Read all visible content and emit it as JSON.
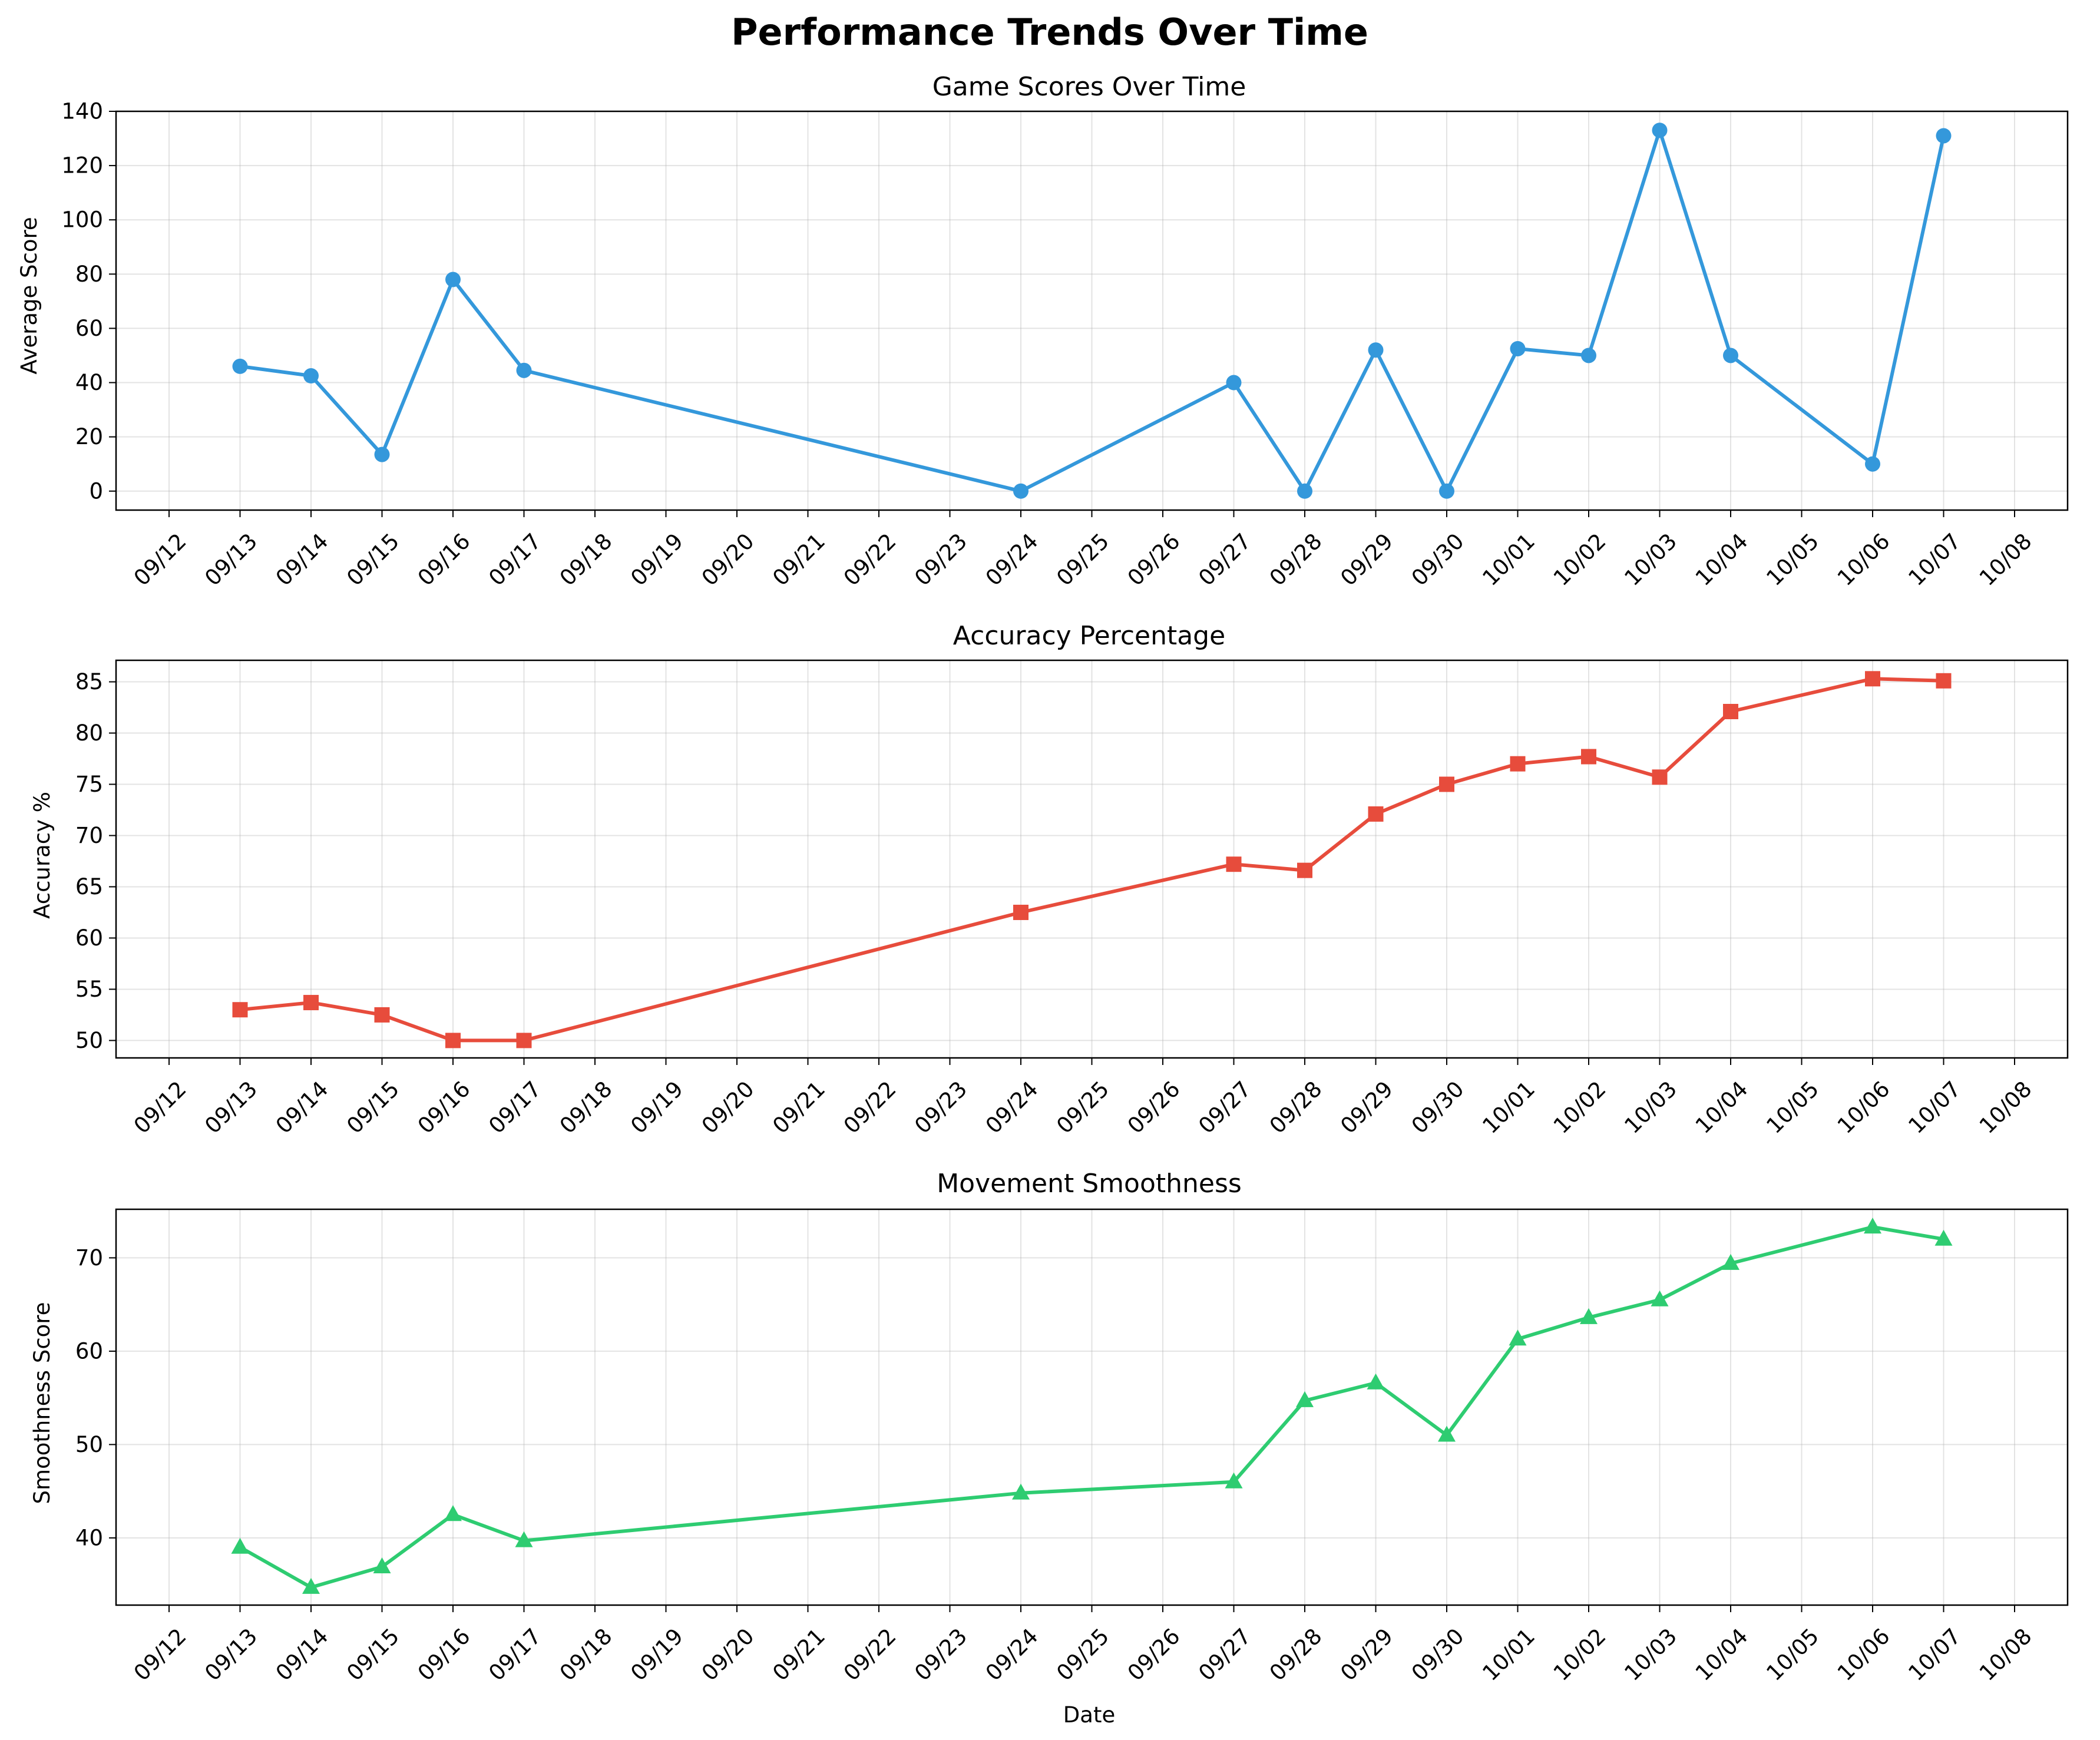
{
  "figure": {
    "title": "Performance Trends Over Time"
  },
  "x_ticks": [
    "09/12",
    "09/13",
    "09/14",
    "09/15",
    "09/16",
    "09/17",
    "09/18",
    "09/19",
    "09/20",
    "09/21",
    "09/22",
    "09/23",
    "09/24",
    "09/25",
    "09/26",
    "09/27",
    "09/28",
    "09/29",
    "09/30",
    "10/01",
    "10/02",
    "10/03",
    "10/04",
    "10/05",
    "10/06",
    "10/07",
    "10/08"
  ],
  "chart_data": [
    {
      "type": "line",
      "title": "Game Scores Over Time",
      "xlabel": "",
      "ylabel": "Average Score",
      "color": "#3498db",
      "marker": "circle",
      "grid": true,
      "xlim": [
        "09/12",
        "10/08"
      ],
      "ylim": [
        -7,
        140
      ],
      "y_ticks": [
        0,
        20,
        40,
        60,
        80,
        100,
        120,
        140
      ],
      "x": [
        "09/13",
        "09/14",
        "09/15",
        "09/16",
        "09/17",
        "09/24",
        "09/27",
        "09/28",
        "09/29",
        "09/30",
        "10/01",
        "10/02",
        "10/03",
        "10/04",
        "10/06",
        "10/07"
      ],
      "values": [
        46,
        42.5,
        13.5,
        78,
        44.5,
        0,
        40,
        0,
        52,
        0,
        52.5,
        50,
        133,
        50,
        10,
        131
      ]
    },
    {
      "type": "line",
      "title": "Accuracy Percentage",
      "xlabel": "",
      "ylabel": "Accuracy %",
      "color": "#e74c3c",
      "marker": "square",
      "grid": true,
      "xlim": [
        "09/12",
        "10/08"
      ],
      "ylim": [
        48.3,
        87.1
      ],
      "y_ticks": [
        50,
        55,
        60,
        65,
        70,
        75,
        80,
        85
      ],
      "x": [
        "09/13",
        "09/14",
        "09/15",
        "09/16",
        "09/17",
        "09/24",
        "09/27",
        "09/28",
        "09/29",
        "09/30",
        "10/01",
        "10/02",
        "10/03",
        "10/04",
        "10/06",
        "10/07"
      ],
      "values": [
        53,
        53.7,
        52.5,
        50,
        50,
        62.5,
        67.2,
        66.6,
        72.1,
        75,
        77,
        77.7,
        75.7,
        82.1,
        85.3,
        85.1
      ]
    },
    {
      "type": "line",
      "title": "Movement Smoothness",
      "xlabel": "Date",
      "ylabel": "Smoothness Score",
      "color": "#2ecc71",
      "marker": "triangle",
      "grid": true,
      "xlim": [
        "09/12",
        "10/08"
      ],
      "ylim": [
        32.8,
        75.2
      ],
      "y_ticks": [
        40,
        50,
        60,
        70
      ],
      "x": [
        "09/13",
        "09/14",
        "09/15",
        "09/16",
        "09/17",
        "09/24",
        "09/27",
        "09/28",
        "09/29",
        "09/30",
        "10/01",
        "10/02",
        "10/03",
        "10/04",
        "10/06",
        "10/07"
      ],
      "values": [
        39,
        34.7,
        36.9,
        42.5,
        39.7,
        44.8,
        46,
        54.7,
        56.6,
        51,
        61.3,
        63.6,
        65.5,
        69.4,
        73.3,
        72
      ]
    }
  ]
}
